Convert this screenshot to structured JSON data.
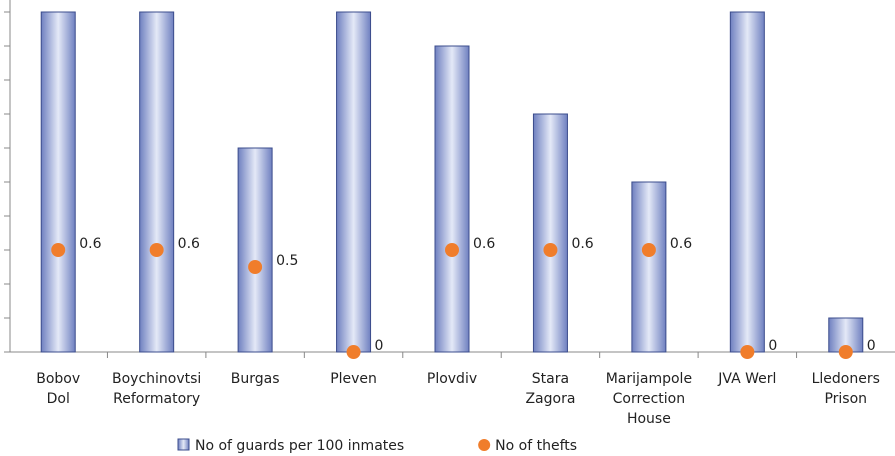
{
  "chart_data": {
    "type": "bar",
    "categories": [
      "Bobov\nDol",
      "Boychinovtsi\nReformatory",
      "Burgas",
      "Pleven",
      "Plovdiv",
      "Stara\nZagora",
      "Marijampole\nCorrection\nHouse",
      "JVA Werl",
      "Lledoners\nPrison"
    ],
    "series": [
      {
        "name": "No of guards per 100 inmates",
        "type": "bar",
        "color": "#a9b6e0",
        "values": [
          2,
          2,
          1.2,
          2,
          1.8,
          1.4,
          1.0,
          2,
          0.2
        ]
      },
      {
        "name": "No of thefts",
        "type": "scatter",
        "color": "#f07d2b",
        "values": [
          0.6,
          0.6,
          0.5,
          0,
          0.6,
          0.6,
          0.6,
          0,
          0
        ]
      }
    ],
    "ylim": [
      0,
      2
    ],
    "yticks": [
      0,
      0.2,
      0.4,
      0.6,
      0.8,
      1,
      1.2,
      1.4,
      1.6,
      1.8,
      2
    ]
  }
}
